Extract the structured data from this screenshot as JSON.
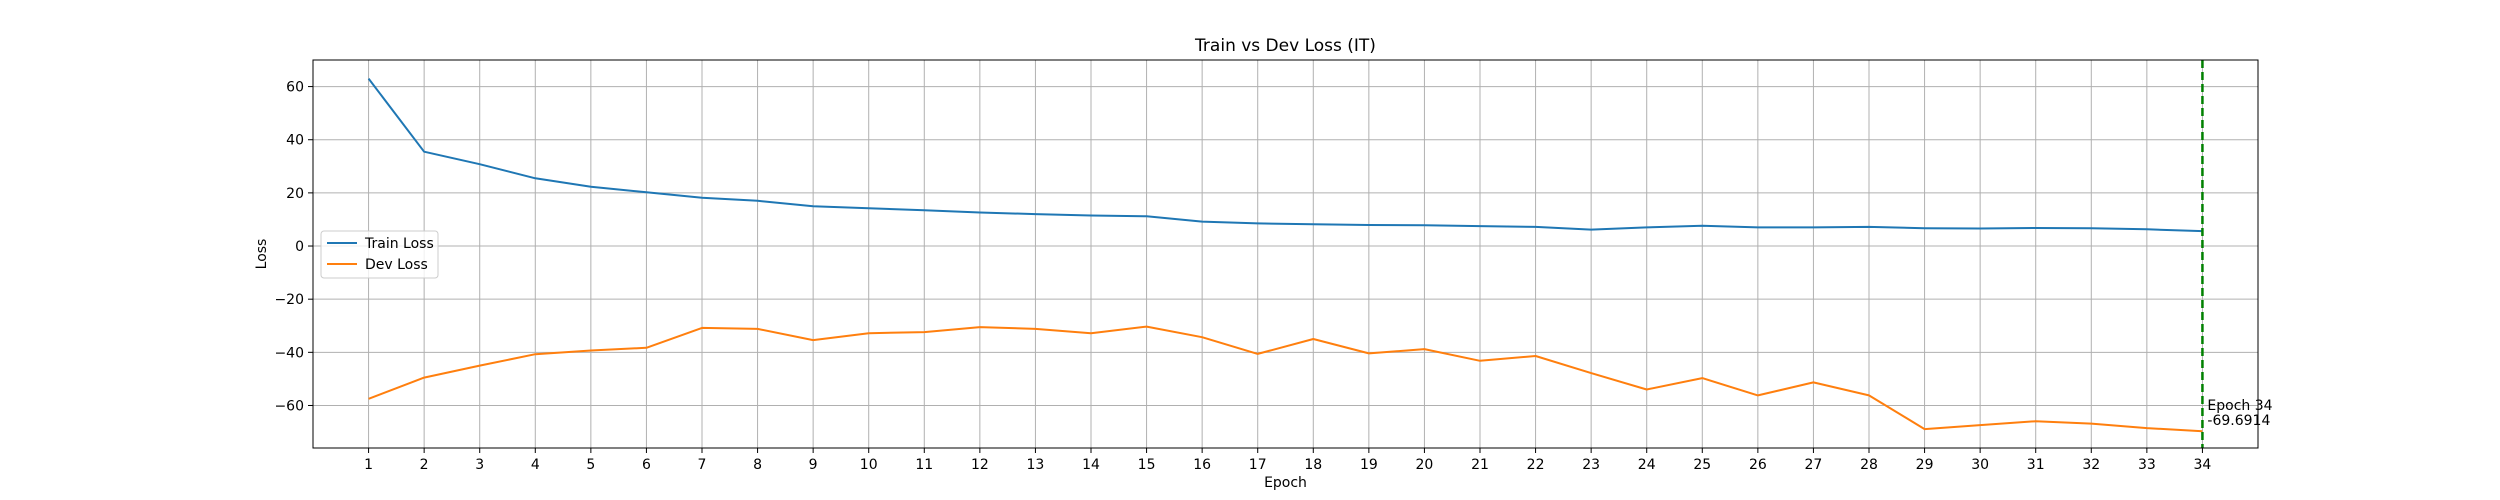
{
  "chart_data": {
    "type": "line",
    "title": "Train vs Dev Loss (IT)",
    "xlabel": "Epoch",
    "ylabel": "Loss",
    "x": [
      1,
      2,
      3,
      4,
      5,
      6,
      7,
      8,
      9,
      10,
      11,
      12,
      13,
      14,
      15,
      16,
      17,
      18,
      19,
      20,
      21,
      22,
      23,
      24,
      25,
      26,
      27,
      28,
      29,
      30,
      31,
      32,
      33,
      34
    ],
    "xlim": [
      0,
      35
    ],
    "ylim": [
      -76,
      70
    ],
    "yticks": [
      60,
      40,
      20,
      0,
      -20,
      -40,
      -60
    ],
    "ytick_labels": [
      "60",
      "40",
      "20",
      "0",
      "−20",
      "−40",
      "−60"
    ],
    "grid": true,
    "legend_position": "center-left",
    "series": [
      {
        "name": "Train Loss",
        "color": "#1f77b4",
        "values": [
          63.0,
          35.5,
          30.8,
          25.5,
          22.3,
          20.2,
          18.2,
          17.0,
          15.0,
          14.2,
          13.5,
          12.6,
          12.0,
          11.5,
          11.2,
          9.2,
          8.5,
          8.2,
          7.9,
          7.8,
          7.5,
          7.2,
          6.2,
          7.0,
          7.6,
          7.0,
          7.0,
          7.2,
          6.7,
          6.6,
          6.8,
          6.7,
          6.3,
          5.6
        ]
      },
      {
        "name": "Dev Loss",
        "color": "#ff7f0e",
        "values": [
          -57.5,
          -49.5,
          -45.0,
          -40.7,
          -39.3,
          -38.3,
          -30.8,
          -31.2,
          -35.4,
          -32.8,
          -32.4,
          -30.5,
          -31.2,
          -32.8,
          -30.3,
          -34.3,
          -40.6,
          -35.0,
          -40.4,
          -38.8,
          -43.2,
          -41.4,
          -47.8,
          -54.0,
          -49.7,
          -56.2,
          -51.3,
          -56.2,
          -68.9,
          -67.4,
          -65.9,
          -66.8,
          -68.5,
          -69.6914
        ]
      }
    ],
    "marker": {
      "x": 34,
      "color": "#008000",
      "label_line1": "Epoch 34",
      "label_line2": "-69.6914"
    }
  }
}
